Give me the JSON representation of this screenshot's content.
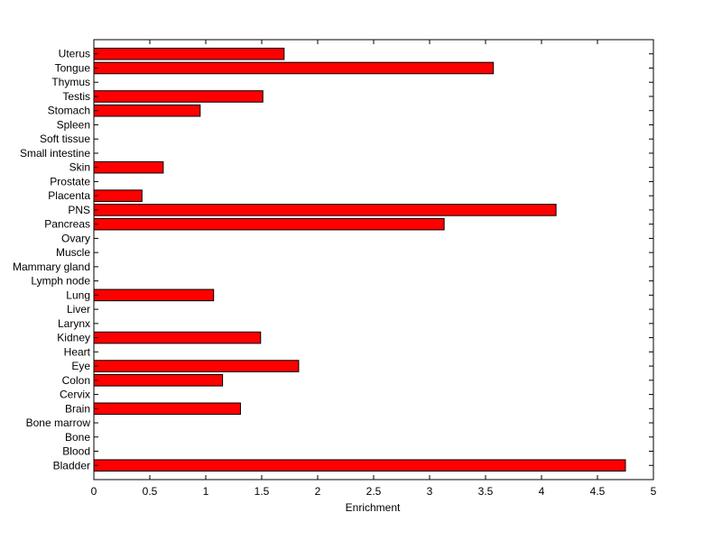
{
  "chart_data": {
    "type": "bar",
    "orientation": "horizontal",
    "title": "",
    "xlabel": "Enrichment",
    "ylabel": "",
    "xlim": [
      0,
      5
    ],
    "xticks": [
      0,
      0.5,
      1,
      1.5,
      2,
      2.5,
      3,
      3.5,
      4,
      4.5,
      5
    ],
    "xtick_labels": [
      "0",
      "0.5",
      "1",
      "1.5",
      "2",
      "2.5",
      "3",
      "3.5",
      "4",
      "4.5",
      "5"
    ],
    "grid": false,
    "legend": "none",
    "bar_color": "#ff0000",
    "bar_edge_color": "#000000",
    "categories": [
      "Bladder",
      "Blood",
      "Bone",
      "Bone marrow",
      "Brain",
      "Cervix",
      "Colon",
      "Eye",
      "Heart",
      "Kidney",
      "Larynx",
      "Liver",
      "Lung",
      "Lymph node",
      "Mammary gland",
      "Muscle",
      "Ovary",
      "Pancreas",
      "PNS",
      "Placenta",
      "Prostate",
      "Skin",
      "Small intestine",
      "Soft tissue",
      "Spleen",
      "Stomach",
      "Testis",
      "Thymus",
      "Tongue",
      "Uterus"
    ],
    "values": [
      4.75,
      0,
      0,
      0,
      1.31,
      0,
      1.15,
      1.83,
      0,
      1.49,
      0,
      0,
      1.07,
      0,
      0,
      0,
      0,
      3.13,
      4.13,
      0.43,
      0,
      0.62,
      0,
      0,
      0,
      0.95,
      1.51,
      0,
      3.57,
      1.7
    ]
  }
}
